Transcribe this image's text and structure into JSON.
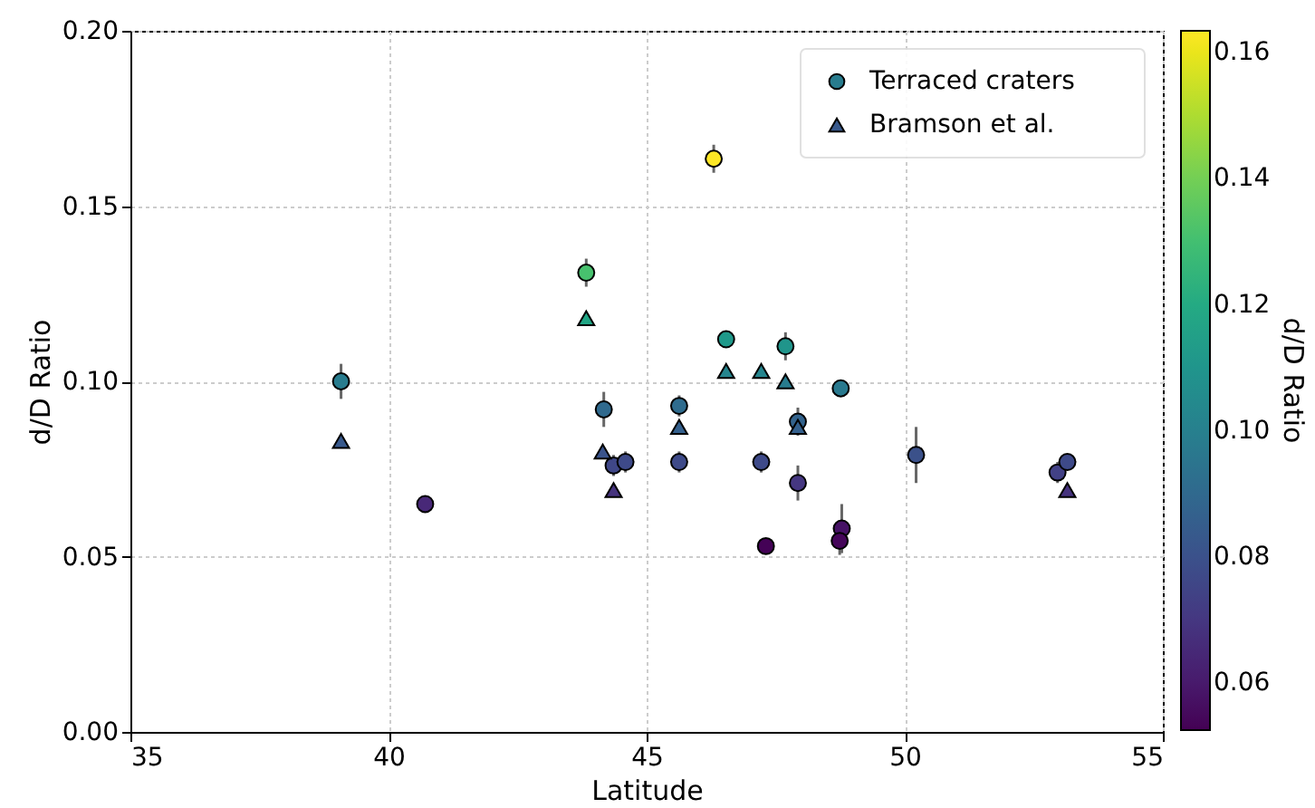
{
  "chart_data": {
    "type": "scatter",
    "xlabel": "Latitude",
    "ylabel": "d/D Ratio",
    "clabel": "d/D Ratio",
    "xlim": [
      35,
      55
    ],
    "xticks": [
      35,
      40,
      45,
      50,
      55
    ],
    "ylim": [
      0,
      0.2
    ],
    "yticks": [
      {
        "value": 0,
        "label": "0.00"
      },
      0.05,
      {
        "value": 0.1,
        "label": "0.10"
      },
      0.15,
      {
        "value": 0.2,
        "label": "0.20"
      }
    ],
    "clim": [
      0.0525,
      0.1635
    ],
    "cticks": [
      0.06,
      0.08,
      {
        "value": 0.1,
        "label": "0.10"
      },
      0.12,
      0.14,
      0.16
    ],
    "grid": true,
    "legend": "top right",
    "series": [
      {
        "name": "Terraced craters",
        "marker": "circle",
        "x": [
          39.08,
          40.71,
          43.83,
          44.17,
          44.36,
          44.59,
          45.63,
          45.63,
          46.3,
          46.54,
          47.22,
          47.31,
          47.69,
          47.93,
          47.93,
          48.76,
          48.78,
          48.74,
          50.22,
          52.96,
          53.15
        ],
        "values": [
          0.1,
          0.065,
          0.131,
          0.092,
          0.076,
          0.077,
          0.093,
          0.077,
          0.1635,
          0.112,
          0.077,
          0.053,
          0.11,
          0.0885,
          0.071,
          0.098,
          0.058,
          0.0545,
          0.079,
          0.074,
          0.077
        ],
        "colors": [
          "#287c8e",
          "#482878",
          "#47c16e",
          "#306a8e",
          "#3f4788",
          "#3e4a89",
          "#2f6c8e",
          "#3e4a89",
          "#fde725",
          "#1f998a",
          "#3e4a89",
          "#440256",
          "#20958b",
          "#33638d",
          "#453781",
          "#29798e",
          "#461265",
          "#45065a",
          "#3b518a",
          "#424186",
          "#3e4a89"
        ],
        "errors": [
          0.005,
          0.002,
          0.004,
          0.005,
          0.003,
          0.003,
          0.003,
          0.003,
          0.004,
          0.002,
          0.003,
          null,
          0.004,
          0.004,
          0.005,
          0.002,
          0.007,
          0.004,
          0.008,
          0.003,
          0.002
        ]
      },
      {
        "name": "Bramson et al.",
        "marker": "triangle",
        "x": [
          39.08,
          43.83,
          44.15,
          44.36,
          45.63,
          46.54,
          47.22,
          47.69,
          47.93,
          53.15
        ],
        "values": [
          0.083,
          0.118,
          0.08,
          0.069,
          0.087,
          0.103,
          0.103,
          0.1,
          0.087,
          0.069
        ],
        "colors": [
          "#38598c",
          "#21a685",
          "#3a548c",
          "#46337e",
          "#34608d",
          "#25858e",
          "#25858e",
          "#287c8e",
          "#34608d",
          "#46337e"
        ]
      }
    ]
  }
}
